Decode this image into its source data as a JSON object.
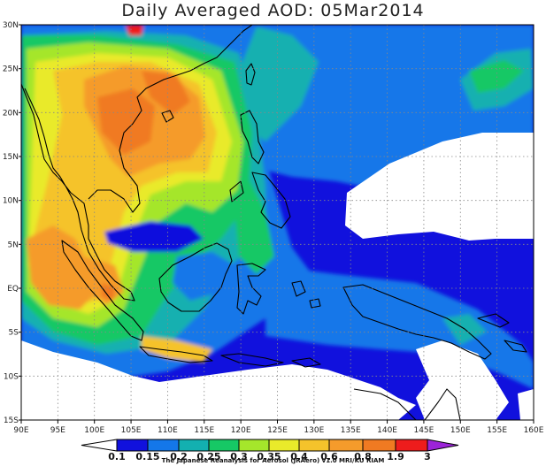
{
  "title": "Daily Averaged AOD: 05Mar2014",
  "credit": "The Japanese Reanalysis for Aerosol (JRAero) v1.0 MRI/KU RIAM",
  "map": {
    "lon_range": [
      90,
      160
    ],
    "lat_range": [
      -15,
      30
    ],
    "x_ticks": [
      {
        "lon": 90,
        "label": "90E"
      },
      {
        "lon": 95,
        "label": "95E"
      },
      {
        "lon": 100,
        "label": "100E"
      },
      {
        "lon": 105,
        "label": "105E"
      },
      {
        "lon": 110,
        "label": "110E"
      },
      {
        "lon": 115,
        "label": "115E"
      },
      {
        "lon": 120,
        "label": "120E"
      },
      {
        "lon": 125,
        "label": "125E"
      },
      {
        "lon": 130,
        "label": "130E"
      },
      {
        "lon": 135,
        "label": "135E"
      },
      {
        "lon": 140,
        "label": "140E"
      },
      {
        "lon": 145,
        "label": "145E"
      },
      {
        "lon": 150,
        "label": "150E"
      },
      {
        "lon": 155,
        "label": "155E"
      },
      {
        "lon": 160,
        "label": "160E"
      }
    ],
    "y_ticks": [
      {
        "lat": 30,
        "label": "30N"
      },
      {
        "lat": 25,
        "label": "25N"
      },
      {
        "lat": 20,
        "label": "20N"
      },
      {
        "lat": 15,
        "label": "15N"
      },
      {
        "lat": 10,
        "label": "10N"
      },
      {
        "lat": 5,
        "label": "5N"
      },
      {
        "lat": 0,
        "label": "EQ"
      },
      {
        "lat": -5,
        "label": "5S"
      },
      {
        "lat": -10,
        "label": "10S"
      },
      {
        "lat": -15,
        "label": "15S"
      }
    ],
    "grid": "dotted"
  },
  "colorbar": {
    "labels": [
      "0.1",
      "0.15",
      "0.2",
      "0.25",
      "0.3",
      "0.35",
      "0.4",
      "0.6",
      "0.8",
      "1.9",
      "3"
    ],
    "colors": [
      "#1111dd",
      "#1477e9",
      "#13b0b0",
      "#16c865",
      "#a5e62b",
      "#e9ea2a",
      "#f5c32b",
      "#f59b2b",
      "#f07a22",
      "#ee1c1c"
    ],
    "below_color": "#ffffff",
    "above_color": "#9c24d8"
  },
  "colors": {
    "low_blue": "#1111dd",
    "light_blue": "#1477e9",
    "teal": "#13b0b0",
    "green": "#16c865",
    "lime": "#a5e62b",
    "yellow": "#e9ea2a",
    "gold": "#f5c32b",
    "orange": "#f59b2b",
    "dark_orange": "#f07a22",
    "red": "#ee1c1c"
  }
}
